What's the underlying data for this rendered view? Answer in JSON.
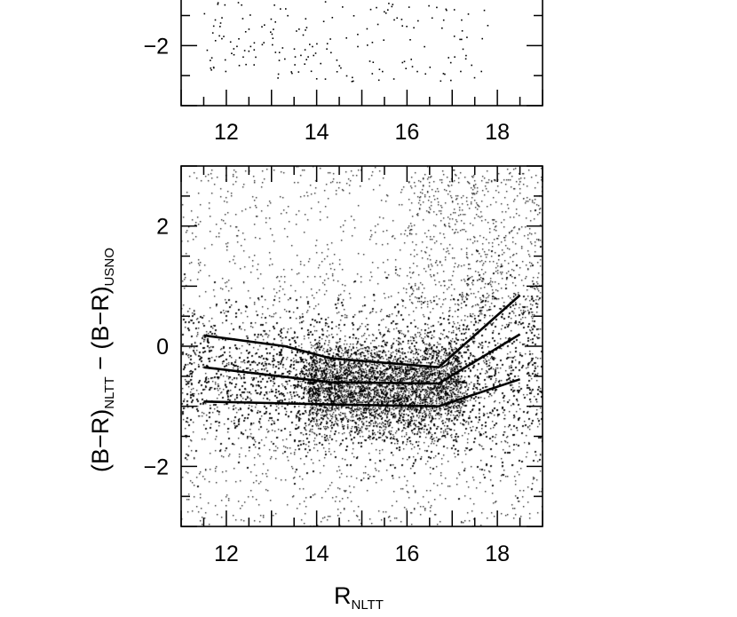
{
  "colors": {
    "background": "#ffffff",
    "ink": "#000000"
  },
  "chart_data": [
    {
      "type": "scatter",
      "panel": "top (partially visible)",
      "xlabel": "",
      "ylabel": "",
      "xlim": [
        11,
        19
      ],
      "ylim_visible": [
        -3.0,
        -0.75
      ],
      "xticks": [
        "12",
        "14",
        "16",
        "18"
      ],
      "yticks": [
        "−2"
      ],
      "grid": false,
      "series": [
        {
          "points": "sparse scatter, visible points mostly at y between -2.5 and -0.8 for x 11.5-17.8"
        }
      ]
    },
    {
      "type": "scatter",
      "panel": "bottom",
      "xlabel": {
        "main": "R",
        "sub": "NLTT"
      },
      "ylabel": {
        "part1": "(B−R)",
        "sub1": "NLTT",
        "part2": " − (B−R)",
        "sub2": "USNO"
      },
      "xlim": [
        11,
        19
      ],
      "ylim": [
        -3,
        3
      ],
      "xticks": [
        "12",
        "14",
        "16",
        "18"
      ],
      "yticks": [
        "−2",
        "0",
        "2"
      ],
      "grid": false,
      "scatter_density": {
        "core_ridge": [
          [
            11.0,
            -0.5
          ],
          [
            12.0,
            -0.55
          ],
          [
            13.0,
            -0.58
          ],
          [
            14.0,
            -0.62
          ],
          [
            15.0,
            -0.66
          ],
          [
            16.0,
            -0.68
          ],
          [
            16.8,
            -0.62
          ],
          [
            17.5,
            -0.48
          ],
          [
            18.5,
            -0.3
          ],
          [
            19.0,
            -0.2
          ]
        ],
        "core_spread": [
          [
            11.0,
            0.6
          ],
          [
            14.0,
            0.55
          ],
          [
            16.0,
            0.55
          ],
          [
            17.0,
            0.65
          ],
          [
            18.0,
            0.8
          ],
          [
            19.0,
            0.95
          ]
        ],
        "outlier_range": [
          -3,
          3
        ]
      },
      "fit_lines": [
        {
          "x": [
            11.5,
            13.3,
            14.3,
            16.7,
            18.5
          ],
          "y": [
            0.18,
            0.0,
            -0.2,
            -0.35,
            0.85
          ]
        },
        {
          "x": [
            11.5,
            14.3,
            16.7,
            18.5
          ],
          "y": [
            -0.35,
            -0.6,
            -0.62,
            0.2
          ]
        },
        {
          "x": [
            11.5,
            14.3,
            16.7,
            18.5
          ],
          "y": [
            -0.92,
            -0.97,
            -1.0,
            -0.55
          ]
        }
      ]
    }
  ]
}
